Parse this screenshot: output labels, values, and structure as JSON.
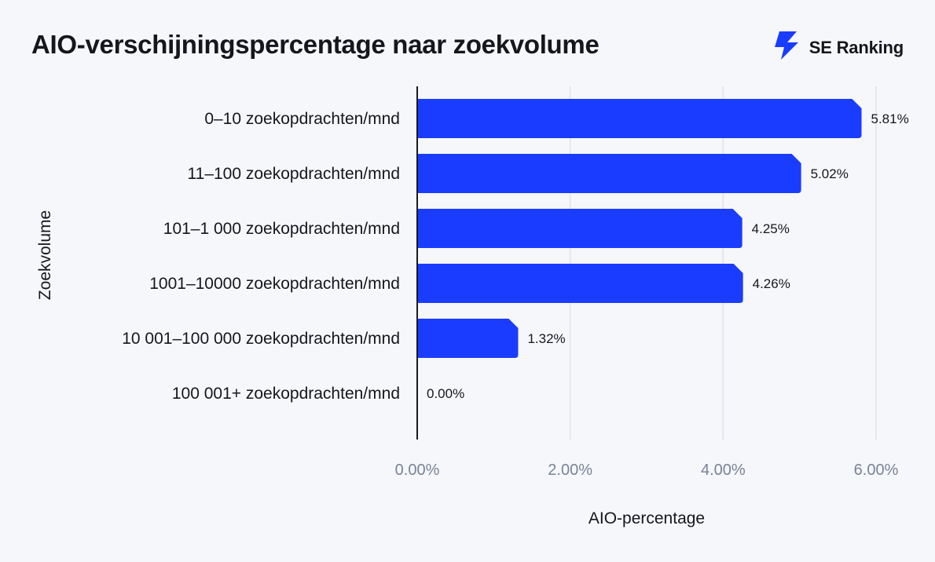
{
  "header": {
    "title": "AIO-verschijningspercentage naar zoekvolume",
    "brand_name": "SE Ranking"
  },
  "colors": {
    "bar": "#1a3cff",
    "grid": "#dfe2ea",
    "axis": "#1a1a1a",
    "tick": "#7a8297",
    "background": "#f6f7fb",
    "logo": "#1a3cff"
  },
  "icons": {
    "logo": "se-ranking-logo-icon"
  },
  "chart_data": {
    "type": "bar",
    "orientation": "horizontal",
    "title": "AIO-verschijningspercentage naar zoekvolume",
    "xlabel": "AIO-percentage",
    "ylabel": "Zoekvolume",
    "categories": [
      "0–10 zoekopdrachten/mnd",
      "11–100 zoekopdrachten/mnd",
      "101–1 000 zoekopdrachten/mnd",
      "1001–10000 zoekopdrachten/mnd",
      "10 001–100 000 zoekopdrachten/mnd",
      "100 001+ zoekopdrachten/mnd"
    ],
    "values": [
      5.81,
      5.02,
      4.25,
      4.26,
      1.32,
      0.0
    ],
    "value_labels": [
      "5.81%",
      "5.02%",
      "4.25%",
      "4.26%",
      "1.32%",
      "0.00%"
    ],
    "xlim": [
      0,
      6
    ],
    "xticks": [
      0,
      2,
      4,
      6
    ],
    "xtick_labels": [
      "0.00%",
      "2.00%",
      "4.00%",
      "6.00%"
    ],
    "grid": true,
    "legend": "none"
  }
}
